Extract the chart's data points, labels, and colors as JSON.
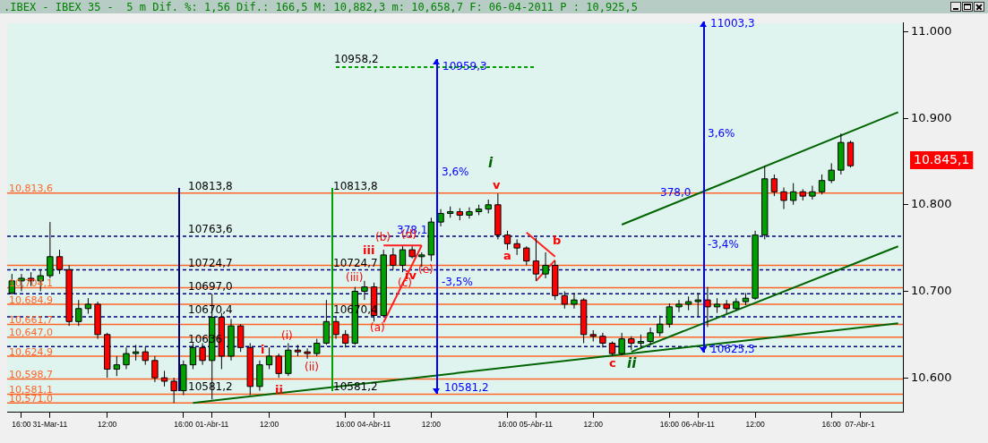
{
  "chart_data": {
    "type": "candlestick",
    "title": ".IBEX - IBEX 35 -  5 m Dif. %: 1,56 Dif.: 166,5 M: 10,882,3 m: 10,658,7 F: 06-04-2011 P : 10,925,5",
    "categories": [
      null,
      "16:00",
      null,
      null,
      "31-Mar-11",
      null,
      null,
      null,
      null,
      null,
      "12:00",
      null,
      null,
      null,
      null,
      null,
      null,
      null,
      "16:00",
      null,
      null,
      "01-Abr-11",
      null,
      null,
      null,
      null,
      null,
      "12:00",
      null,
      null,
      null,
      null,
      null,
      null,
      null,
      "16:00",
      null,
      null,
      "04-Abr-11",
      null,
      null,
      null,
      null,
      null,
      "12:00",
      null,
      null,
      null,
      null,
      null,
      null,
      null,
      "16:00",
      null,
      null,
      "05-Abr-11",
      null,
      null,
      null,
      null,
      null,
      "12:00",
      null,
      null,
      null,
      null,
      null,
      null,
      null,
      "16:00",
      null,
      null,
      "06-Abr-11",
      null,
      null,
      null,
      null,
      null,
      "12:00",
      null,
      null,
      null,
      null,
      null,
      null,
      null,
      "16:00",
      null,
      null,
      "07-Abr-1",
      null,
      null,
      null,
      null
    ],
    "ohlc": [
      [
        10698,
        10720,
        10696,
        10712
      ],
      [
        10712,
        10720,
        10700,
        10715
      ],
      [
        10715,
        10722,
        10706,
        10712
      ],
      [
        10712,
        10725,
        10700,
        10718
      ],
      [
        10718,
        10780,
        10715,
        10740
      ],
      [
        10740,
        10748,
        10720,
        10725
      ],
      [
        10725,
        10730,
        10660,
        10665
      ],
      [
        10665,
        10690,
        10660,
        10680
      ],
      [
        10680,
        10692,
        10674,
        10685
      ],
      [
        10685,
        10688,
        10645,
        10650
      ],
      [
        10650,
        10652,
        10600,
        10610
      ],
      [
        10610,
        10625,
        10602,
        10615
      ],
      [
        10615,
        10635,
        10610,
        10628
      ],
      [
        10628,
        10638,
        10620,
        10630
      ],
      [
        10630,
        10636,
        10615,
        10620
      ],
      [
        10620,
        10625,
        10595,
        10600
      ],
      [
        10600,
        10608,
        10590,
        10596
      ],
      [
        10596,
        10600,
        10571,
        10585
      ],
      [
        10585,
        10620,
        10580,
        10615
      ],
      [
        10615,
        10640,
        10610,
        10635
      ],
      [
        10635,
        10640,
        10615,
        10620
      ],
      [
        10620,
        10697,
        10575,
        10670
      ],
      [
        10670,
        10675,
        10610,
        10625
      ],
      [
        10625,
        10668,
        10620,
        10660
      ],
      [
        10660,
        10662,
        10630,
        10635
      ],
      [
        10635,
        10640,
        10580,
        10590
      ],
      [
        10590,
        10620,
        10585,
        10615
      ],
      [
        10615,
        10635,
        10610,
        10625
      ],
      [
        10625,
        10628,
        10600,
        10605
      ],
      [
        10605,
        10640,
        10602,
        10632
      ],
      [
        10632,
        10638,
        10625,
        10630
      ],
      [
        10630,
        10634,
        10622,
        10628
      ],
      [
        10628,
        10645,
        10625,
        10640
      ],
      [
        10640,
        10690,
        10638,
        10665
      ],
      [
        10665,
        10670,
        10645,
        10650
      ],
      [
        10650,
        10655,
        10635,
        10640
      ],
      [
        10640,
        10705,
        10638,
        10700
      ],
      [
        10700,
        10712,
        10690,
        10705
      ],
      [
        10705,
        10710,
        10665,
        10672
      ],
      [
        10672,
        10748,
        10670,
        10742
      ],
      [
        10742,
        10750,
        10725,
        10730
      ],
      [
        10730,
        10752,
        10722,
        10748
      ],
      [
        10748,
        10752,
        10738,
        10740
      ],
      [
        10740,
        10745,
        10728,
        10742
      ],
      [
        10742,
        10785,
        10735,
        10780
      ],
      [
        10780,
        10795,
        10775,
        10790
      ],
      [
        10790,
        10798,
        10785,
        10792
      ],
      [
        10792,
        10796,
        10782,
        10788
      ],
      [
        10788,
        10797,
        10784,
        10792
      ],
      [
        10792,
        10800,
        10788,
        10795
      ],
      [
        10795,
        10806,
        10790,
        10800
      ],
      [
        10800,
        10813,
        10760,
        10765
      ],
      [
        10765,
        10770,
        10748,
        10755
      ],
      [
        10755,
        10760,
        10742,
        10750
      ],
      [
        10750,
        10752,
        10730,
        10735
      ],
      [
        10735,
        10762,
        10712,
        10720
      ],
      [
        10720,
        10745,
        10715,
        10730
      ],
      [
        10730,
        10735,
        10690,
        10695
      ],
      [
        10695,
        10700,
        10680,
        10685
      ],
      [
        10685,
        10698,
        10680,
        10690
      ],
      [
        10690,
        10692,
        10640,
        10650
      ],
      [
        10650,
        10655,
        10642,
        10648
      ],
      [
        10648,
        10652,
        10635,
        10640
      ],
      [
        10640,
        10642,
        10625,
        10628
      ],
      [
        10628,
        10652,
        10626,
        10645
      ],
      [
        10645,
        10648,
        10632,
        10640
      ],
      [
        10640,
        10650,
        10635,
        10642
      ],
      [
        10642,
        10658,
        10638,
        10652
      ],
      [
        10652,
        10672,
        10648,
        10662
      ],
      [
        10662,
        10686,
        10658,
        10682
      ],
      [
        10682,
        10690,
        10676,
        10685
      ],
      [
        10685,
        10694,
        10678,
        10688
      ],
      [
        10688,
        10698,
        10670,
        10690
      ],
      [
        10690,
        10705,
        10658.7,
        10682
      ],
      [
        10682,
        10692,
        10675,
        10685
      ],
      [
        10685,
        10690,
        10674,
        10680
      ],
      [
        10680,
        10692,
        10678,
        10688
      ],
      [
        10688,
        10698,
        10684,
        10692
      ],
      [
        10692,
        10770,
        10690,
        10765
      ],
      [
        10765,
        10845,
        10760,
        10830
      ],
      [
        10830,
        10835,
        10810,
        10815
      ],
      [
        10815,
        10820,
        10795,
        10805
      ],
      [
        10805,
        10825,
        10800,
        10815
      ],
      [
        10815,
        10818,
        10805,
        10810
      ],
      [
        10810,
        10822,
        10806,
        10815
      ],
      [
        10815,
        10835,
        10812,
        10828
      ],
      [
        10828,
        10848,
        10825,
        10840
      ],
      [
        10840,
        10882.3,
        10835,
        10872
      ],
      [
        10872,
        10874,
        10843,
        10845.1
      ],
      null,
      null,
      null,
      null,
      null
    ],
    "series": [
      {
        "type": "line",
        "color": "#006400",
        "values": [
          null,
          null,
          null,
          null,
          null,
          null,
          null,
          null,
          null,
          null,
          null,
          null,
          null,
          null,
          null,
          null,
          null,
          null,
          null,
          10571,
          null,
          null,
          null,
          null,
          null,
          null,
          null,
          null,
          null,
          null,
          null,
          null,
          null,
          null,
          null,
          null,
          null,
          null,
          null,
          null,
          null,
          null,
          null,
          null,
          null,
          null,
          null,
          null,
          null,
          null,
          null,
          null,
          null,
          null,
          null,
          null,
          null,
          null,
          null,
          null,
          null,
          null,
          null,
          null,
          null,
          null,
          null,
          null,
          null,
          null,
          null,
          null,
          null,
          null,
          null,
          null,
          null,
          null,
          null,
          null,
          null,
          null,
          null,
          null,
          null,
          null,
          null,
          null,
          null,
          null,
          null,
          null,
          null,
          10663
        ]
      },
      {
        "type": "line",
        "color": "#006400",
        "values": [
          null,
          null,
          null,
          null,
          null,
          null,
          null,
          null,
          null,
          null,
          null,
          null,
          null,
          null,
          null,
          null,
          null,
          null,
          null,
          null,
          null,
          null,
          null,
          null,
          null,
          null,
          null,
          null,
          null,
          null,
          null,
          null,
          null,
          null,
          null,
          null,
          null,
          null,
          null,
          null,
          null,
          null,
          null,
          null,
          null,
          null,
          null,
          null,
          null,
          null,
          null,
          null,
          null,
          null,
          null,
          null,
          null,
          null,
          null,
          null,
          null,
          null,
          null,
          null,
          null,
          10630,
          null,
          null,
          null,
          null,
          null,
          null,
          null,
          null,
          null,
          null,
          null,
          null,
          null,
          null,
          null,
          null,
          null,
          null,
          null,
          null,
          null,
          null,
          null,
          null,
          null,
          null,
          null,
          10752
        ]
      },
      {
        "type": "line",
        "color": "#006400",
        "values": [
          null,
          null,
          null,
          null,
          null,
          null,
          null,
          null,
          null,
          null,
          null,
          null,
          null,
          null,
          null,
          null,
          null,
          null,
          null,
          null,
          null,
          null,
          null,
          null,
          null,
          null,
          null,
          null,
          null,
          null,
          null,
          null,
          null,
          null,
          null,
          null,
          null,
          null,
          null,
          null,
          null,
          null,
          null,
          null,
          null,
          null,
          null,
          null,
          null,
          null,
          null,
          null,
          null,
          null,
          null,
          null,
          null,
          null,
          null,
          null,
          null,
          null,
          null,
          null,
          10777,
          null,
          null,
          null,
          null,
          null,
          null,
          null,
          null,
          null,
          null,
          null,
          null,
          null,
          null,
          null,
          null,
          null,
          null,
          null,
          null,
          null,
          null,
          null,
          null,
          null,
          null,
          null,
          null,
          10907
        ]
      },
      {
        "type": "line",
        "color": "#ff2020",
        "values": [
          null,
          null,
          null,
          null,
          null,
          null,
          null,
          null,
          null,
          null,
          null,
          null,
          null,
          null,
          null,
          null,
          null,
          null,
          null,
          null,
          null,
          null,
          null,
          null,
          null,
          null,
          null,
          null,
          null,
          null,
          null,
          null,
          null,
          null,
          null,
          null,
          null,
          null,
          null,
          10664,
          null,
          null,
          null,
          10753,
          null,
          null,
          null,
          null,
          null,
          null,
          null,
          null,
          null,
          null,
          null,
          null,
          null,
          null,
          null,
          null,
          null,
          null,
          null,
          null,
          null,
          null,
          null,
          null,
          null,
          null,
          null,
          null,
          null,
          null,
          null,
          null,
          null,
          null,
          null,
          null,
          null,
          null,
          null,
          null,
          null,
          null,
          null,
          null,
          null,
          null,
          null,
          null,
          null,
          null
        ]
      },
      {
        "type": "line",
        "color": "#ff2020",
        "values": [
          null,
          null,
          null,
          null,
          null,
          null,
          null,
          null,
          null,
          null,
          null,
          null,
          null,
          null,
          null,
          null,
          null,
          null,
          null,
          null,
          null,
          null,
          null,
          null,
          null,
          null,
          null,
          null,
          null,
          null,
          null,
          null,
          null,
          null,
          null,
          null,
          null,
          null,
          null,
          10753,
          null,
          null,
          null,
          10753,
          null,
          null,
          null,
          null,
          null,
          null,
          null,
          null,
          null,
          null,
          null,
          null,
          null,
          null,
          null,
          null,
          null,
          null,
          null,
          null,
          null,
          null,
          null,
          null,
          null,
          null,
          null,
          null,
          null,
          null,
          null,
          null,
          null,
          null,
          null,
          null,
          null,
          null,
          null,
          null,
          null,
          null,
          null,
          null,
          null,
          null,
          null,
          null,
          null,
          null
        ]
      },
      {
        "type": "line",
        "color": "#ff2020",
        "values": [
          null,
          null,
          null,
          null,
          null,
          null,
          null,
          null,
          null,
          null,
          null,
          null,
          null,
          null,
          null,
          null,
          null,
          null,
          null,
          null,
          null,
          null,
          null,
          null,
          null,
          null,
          null,
          null,
          null,
          null,
          null,
          null,
          null,
          null,
          null,
          null,
          null,
          null,
          null,
          null,
          null,
          null,
          null,
          null,
          null,
          null,
          null,
          null,
          null,
          null,
          null,
          null,
          null,
          null,
          10768,
          null,
          null,
          10740,
          null,
          null,
          null,
          null,
          null,
          null,
          null,
          null,
          null,
          null,
          null,
          null,
          null,
          null,
          null,
          null,
          null,
          null,
          null,
          null,
          null,
          null,
          null,
          null,
          null,
          null,
          null,
          null,
          null,
          null,
          null,
          null,
          null,
          null,
          null,
          null
        ]
      },
      {
        "type": "line",
        "color": "#ff2020",
        "values": [
          null,
          null,
          null,
          null,
          null,
          null,
          null,
          null,
          null,
          null,
          null,
          null,
          null,
          null,
          null,
          null,
          null,
          null,
          null,
          null,
          null,
          null,
          null,
          null,
          null,
          null,
          null,
          null,
          null,
          null,
          null,
          null,
          null,
          null,
          null,
          null,
          null,
          null,
          null,
          null,
          null,
          null,
          null,
          null,
          null,
          null,
          null,
          null,
          null,
          null,
          null,
          null,
          null,
          null,
          null,
          10712,
          null,
          10736,
          null,
          null,
          null,
          null,
          null,
          null,
          null,
          null,
          null,
          null,
          null,
          null,
          null,
          null,
          null,
          null,
          null,
          null,
          null,
          null,
          null,
          null,
          null,
          null,
          null,
          null,
          null,
          null,
          null,
          null,
          null,
          null,
          null,
          null,
          null,
          null
        ]
      },
      {
        "type": "line",
        "color": "#00a000",
        "line_style": "dashed",
        "values": [
          null,
          null,
          null,
          null,
          null,
          null,
          null,
          null,
          null,
          null,
          null,
          null,
          null,
          null,
          null,
          null,
          null,
          null,
          null,
          null,
          null,
          null,
          null,
          null,
          null,
          null,
          null,
          null,
          null,
          null,
          null,
          null,
          null,
          null,
          10959,
          null,
          null,
          null,
          null,
          null,
          null,
          null,
          null,
          null,
          null,
          null,
          null,
          null,
          null,
          null,
          null,
          null,
          null,
          null,
          null,
          10959,
          null,
          null,
          null,
          null,
          null,
          null,
          null,
          null,
          null,
          null,
          null,
          null,
          null,
          null,
          null,
          null,
          null,
          null,
          null,
          null,
          null,
          null,
          null,
          null,
          null,
          null,
          null,
          null,
          null,
          null,
          null,
          null,
          null,
          null,
          null,
          null,
          null,
          null
        ]
      }
    ],
    "ref_lines": [
      {
        "axis": "y",
        "value": 10813.6,
        "label": "10,813,6",
        "color": "#ff6428"
      },
      {
        "axis": "y",
        "value": 10730,
        "color": "#ff6428"
      },
      {
        "axis": "y",
        "value": 10704.1,
        "label": "10,704,1",
        "color": "#ff6428"
      },
      {
        "axis": "y",
        "value": 10684.9,
        "label": "10,684,9",
        "color": "#ff6428"
      },
      {
        "axis": "y",
        "value": 10661.7,
        "label": "10,661,7",
        "color": "#ff6428"
      },
      {
        "axis": "y",
        "value": 10647.0,
        "label": "10,647,0",
        "color": "#ff6428"
      },
      {
        "axis": "y",
        "value": 10624.9,
        "label": "10,624,9",
        "color": "#ff6428"
      },
      {
        "axis": "y",
        "value": 10598.7,
        "label": "10,598,7",
        "color": "#ff6428"
      },
      {
        "axis": "y",
        "value": 10581.1,
        "label": "10,581,1",
        "color": "#ff6428"
      },
      {
        "axis": "y",
        "value": 10571.0,
        "label": "10,571,0",
        "color": "#ff6428"
      },
      {
        "axis": "y",
        "value": 10763.6,
        "color": "#000080",
        "line_style": "dashed"
      },
      {
        "axis": "y",
        "value": 10724.7,
        "color": "#000080",
        "line_style": "dashed"
      },
      {
        "axis": "y",
        "value": 10697.0,
        "color": "#000080",
        "line_style": "dashed"
      },
      {
        "axis": "y",
        "value": 10670.4,
        "color": "#000080",
        "line_style": "dashed"
      },
      {
        "axis": "y",
        "value": 10636,
        "color": "#000080",
        "line_style": "dashed"
      }
    ],
    "annotations": [
      {
        "text": "10813,8",
        "y": 10813.8
      },
      {
        "text": "10813,8",
        "y": 10813.8
      },
      {
        "text": "10763,6",
        "y": 10763.6
      },
      {
        "text": "10724,7",
        "y": 10724.7
      },
      {
        "text": "10724,7",
        "y": 10724.7
      },
      {
        "text": "10697,0",
        "y": 10697.0
      },
      {
        "text": "10670,4",
        "y": 10670.4
      },
      {
        "text": "10670,4",
        "y": 10670.4
      },
      {
        "text": "10636",
        "y": 10636
      },
      {
        "text": "10581,2",
        "y": 10581.2
      },
      {
        "text": "10581,2",
        "y": 10581.2
      },
      {
        "text": "10958,2",
        "y": 10959
      },
      {
        "text": "10959,3",
        "y": 10959
      },
      "11003,3",
      "10625,3",
      "10581,2",
      "3,6%",
      "3,6%",
      "-3,5%",
      "-3,4%",
      {
        "text": "378,1",
        "y": 10763.6
      },
      {
        "text": "378,0",
        "y": 10813.6
      },
      "i",
      {
        "text": "v",
        "y": 10813
      },
      "a",
      "b",
      "c",
      "ii",
      "iii",
      "iv",
      "(a)",
      {
        "text": "(b)",
        "y": 10753
      },
      "(c)",
      "(d)",
      "(e)",
      {
        "text": "(iii)",
        "y": 10705
      },
      {
        "text": "(i)",
        "y": 10640
      },
      {
        "text": "(ii)",
        "y": 10622
      },
      {
        "text": "i",
        "y": 10620
      },
      {
        "text": "ii",
        "y": 10600
      },
      "10.845,1"
    ],
    "ylim": [
      10560,
      11010
    ],
    "yticks": [
      {
        "value": 10600,
        "label": "10.600"
      },
      {
        "value": 10700,
        "label": "10.700"
      },
      {
        "value": 10800,
        "label": "10.800"
      },
      {
        "value": 10900,
        "label": "10.900"
      },
      {
        "value": 11000,
        "label": "11.000"
      }
    ]
  }
}
